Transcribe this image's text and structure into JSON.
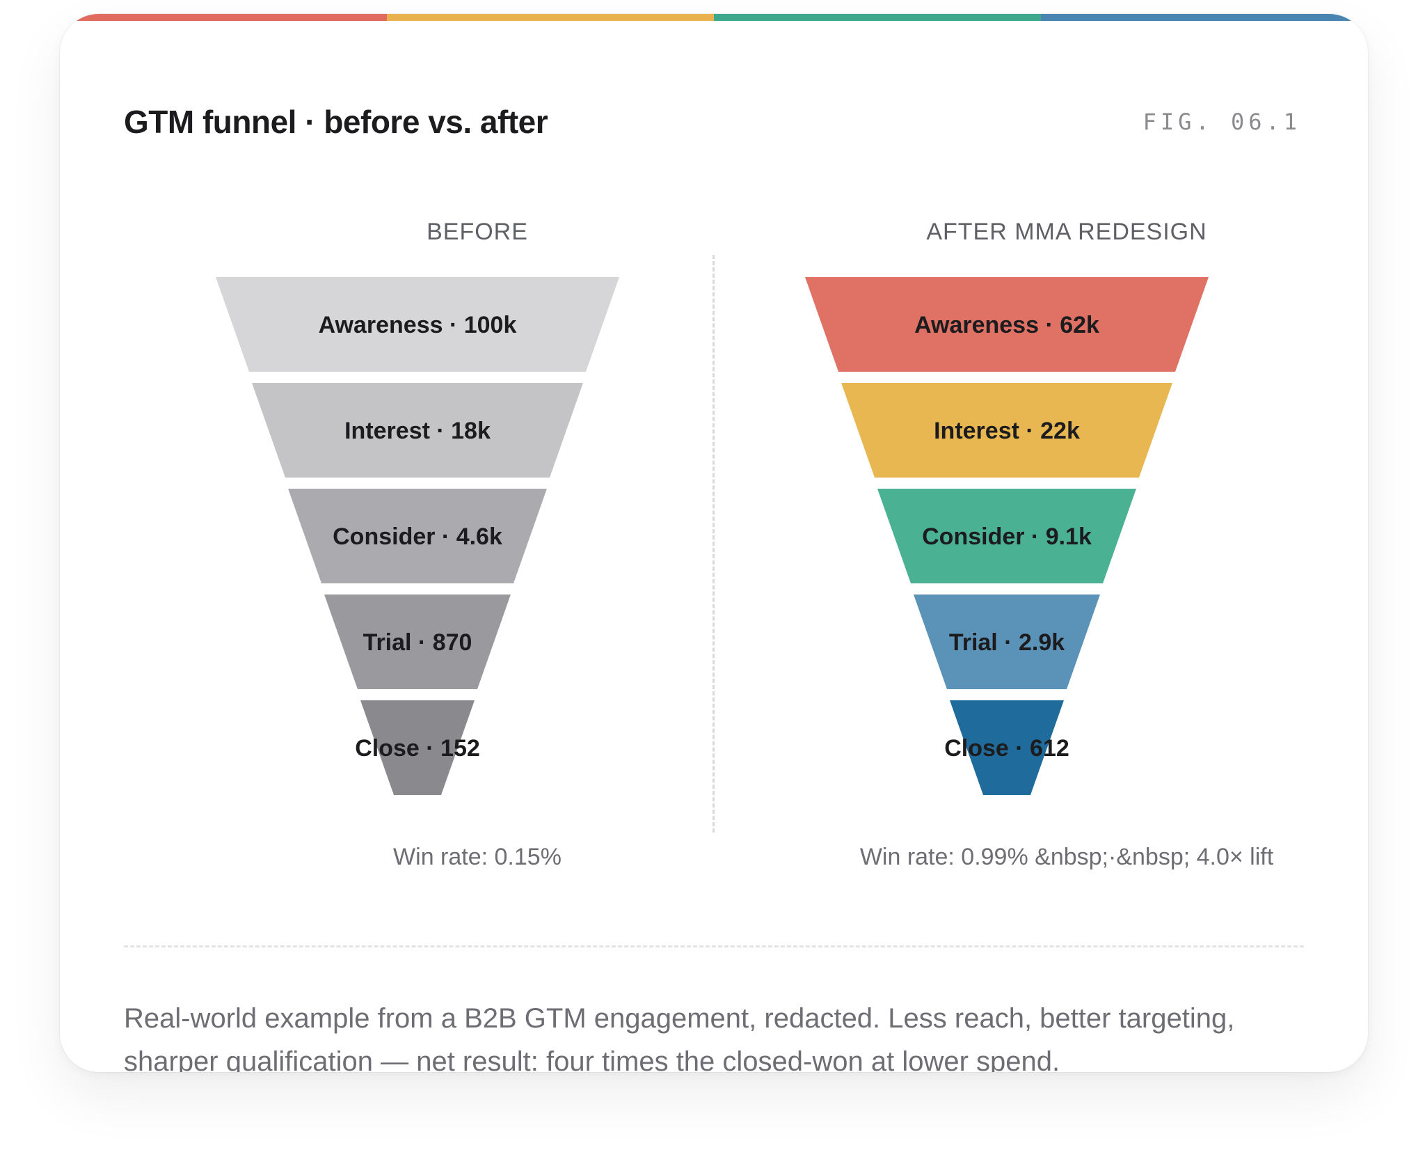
{
  "header": {
    "title": "GTM funnel · before vs. after",
    "fig_label": "FIG. 06.1"
  },
  "colors": {
    "accent": [
      "#e06b5e",
      "#e8b34e",
      "#3ea88c",
      "#4a85b2"
    ],
    "before_stages": [
      "#d6d6d8",
      "#c4c4c7",
      "#ababaf",
      "#9a9a9e",
      "#8a8a8e"
    ],
    "after_stages": [
      "#df7265",
      "#e8b752",
      "#4ab192",
      "#5b92b8",
      "#1e6b9c"
    ]
  },
  "chart_data": [
    {
      "type": "funnel",
      "title": "BEFORE",
      "stages": [
        {
          "name": "Awareness",
          "value_label": "100k",
          "label": "Awareness · 100k"
        },
        {
          "name": "Interest",
          "value_label": "18k",
          "label": "Interest · 18k"
        },
        {
          "name": "Consider",
          "value_label": "4.6k",
          "label": "Consider · 4.6k"
        },
        {
          "name": "Trial",
          "value_label": "870",
          "label": "Trial · 870"
        },
        {
          "name": "Close",
          "value_label": "152",
          "label": "Close · 152"
        }
      ],
      "footer": "Win rate: 0.15%"
    },
    {
      "type": "funnel",
      "title": "AFTER MMA REDESIGN",
      "stages": [
        {
          "name": "Awareness",
          "value_label": "62k",
          "label": "Awareness · 62k"
        },
        {
          "name": "Interest",
          "value_label": "22k",
          "label": "Interest · 22k"
        },
        {
          "name": "Consider",
          "value_label": "9.1k",
          "label": "Consider · 9.1k"
        },
        {
          "name": "Trial",
          "value_label": "2.9k",
          "label": "Trial · 2.9k"
        },
        {
          "name": "Close",
          "value_label": "612",
          "label": "Close · 612"
        }
      ],
      "footer": "Win rate: 0.99% &nbsp;·&nbsp; 4.0× lift"
    }
  ],
  "caption": "Real-world example from a B2B GTM engagement, redacted. Less reach, better targeting, sharper qualification — net result: four times the closed-won at lower spend."
}
